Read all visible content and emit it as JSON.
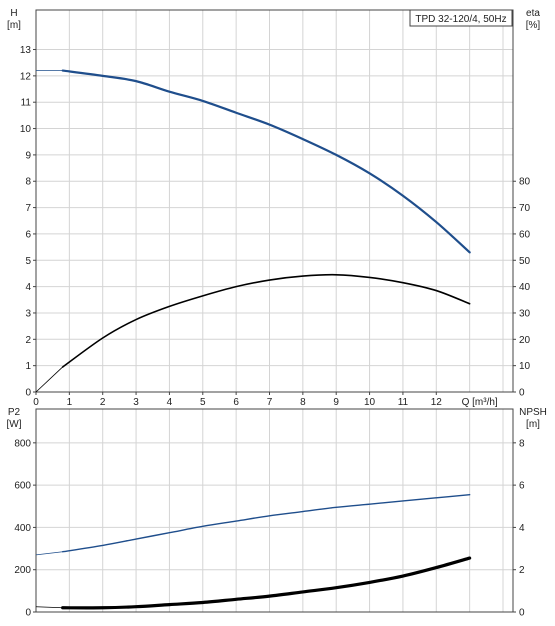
{
  "chart_data": [
    {
      "type": "line",
      "title": "TPD 32-120/4, 50Hz",
      "xlabel": "Q [m³/h]",
      "ylabel_left": [
        "H",
        "[m]"
      ],
      "ylabel_right": [
        "eta",
        "[%]"
      ],
      "xlim": [
        0,
        14.3
      ],
      "ylim_left": [
        0,
        14.5
      ],
      "ylim_right": [
        0,
        145
      ],
      "x_ticks": [
        0,
        1,
        2,
        3,
        4,
        5,
        6,
        7,
        8,
        9,
        10,
        11,
        12
      ],
      "y_ticks_left": [
        0,
        1,
        2,
        3,
        4,
        5,
        6,
        7,
        8,
        9,
        10,
        11,
        12,
        13
      ],
      "y_ticks_right": [
        0,
        10,
        20,
        30,
        40,
        50,
        60,
        70,
        80
      ],
      "grid": true,
      "series": [
        {
          "axis": "left",
          "color": "#1f4e8c",
          "x": [
            0.8,
            2,
            3,
            4,
            5,
            6,
            7,
            8,
            9,
            10,
            11,
            12,
            13
          ],
          "values": [
            12.2,
            12.0,
            11.8,
            11.4,
            11.05,
            10.6,
            10.15,
            9.6,
            9.0,
            8.3,
            7.45,
            6.45,
            5.3
          ]
        },
        {
          "axis": "right",
          "color": "#000000",
          "x": [
            0.8,
            2,
            3,
            4,
            5,
            6,
            7,
            8,
            9,
            10,
            11,
            12,
            13
          ],
          "values": [
            9.5,
            20.5,
            27.5,
            32.5,
            36.5,
            40,
            42.5,
            44,
            44.5,
            43.5,
            41.5,
            38.5,
            33.5
          ]
        }
      ]
    },
    {
      "type": "line",
      "xlabel": "",
      "ylabel_left": [
        "P2",
        "[W]"
      ],
      "ylabel_right": [
        "NPSH",
        "[m]"
      ],
      "xlim": [
        0,
        14.3
      ],
      "ylim_left": [
        0,
        960
      ],
      "ylim_right": [
        0,
        9.6
      ],
      "y_ticks_left": [
        0,
        200,
        400,
        600,
        800
      ],
      "y_ticks_right": [
        0,
        2,
        4,
        6,
        8
      ],
      "grid": true,
      "series": [
        {
          "axis": "left",
          "color": "#1f4e8c",
          "x": [
            0.8,
            2,
            3,
            4,
            5,
            6,
            7,
            8,
            9,
            10,
            11,
            12,
            13
          ],
          "values": [
            285,
            315,
            345,
            375,
            405,
            430,
            455,
            475,
            495,
            510,
            525,
            540,
            555
          ]
        },
        {
          "axis": "right",
          "color": "#000000",
          "x": [
            0.8,
            2,
            3,
            4,
            5,
            6,
            7,
            8,
            9,
            10,
            11,
            12,
            13
          ],
          "values": [
            0.2,
            0.2,
            0.25,
            0.35,
            0.45,
            0.6,
            0.75,
            0.95,
            1.15,
            1.4,
            1.7,
            2.1,
            2.55
          ]
        }
      ]
    }
  ]
}
